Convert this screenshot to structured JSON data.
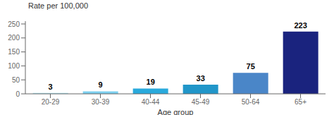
{
  "chart_data": {
    "type": "bar",
    "ylabel": "Rate per 100,000",
    "xlabel": "Age group",
    "categories": [
      "20-29",
      "30-39",
      "40-44",
      "45-49",
      "50-64",
      "65+"
    ],
    "values": [
      3,
      9,
      19,
      33,
      75,
      223
    ],
    "colors": [
      "#a8dff0",
      "#7dd0ef",
      "#29aadc",
      "#2196c9",
      "#4a86c8",
      "#1a237e"
    ],
    "ylim": [
      0,
      260
    ],
    "yticks": [
      0,
      50,
      100,
      150,
      200,
      250
    ],
    "data_labels": true,
    "grid": false
  }
}
